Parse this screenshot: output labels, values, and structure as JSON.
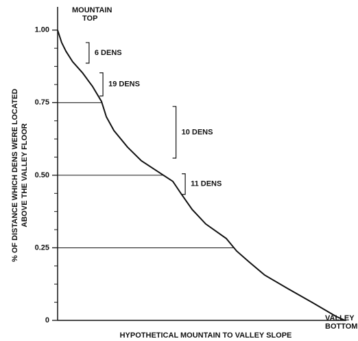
{
  "chart_data": {
    "type": "line",
    "ylabel": [
      "% OF DISTANCE WHICH DENS WERE LOCATED",
      "ABOVE THE VALLEY FLOOR"
    ],
    "xlabel": "HYPOTHETICAL MOUNTAIN TO VALLEY SLOPE",
    "top_label": [
      "MOUNTAIN",
      "TOP"
    ],
    "bottom_label": [
      "VALLEY",
      "BOTTOM"
    ],
    "xlim": [
      0,
      1
    ],
    "ylim": [
      0,
      1.08
    ],
    "yticks": [
      {
        "value": 1,
        "label": "1.00"
      },
      {
        "value": 0.75,
        "label": "0.75"
      },
      {
        "value": 0.5,
        "label": "0.50"
      },
      {
        "value": 0.25,
        "label": "0.25"
      },
      0
    ],
    "minor_yticks": [
      0.0625,
      0.125,
      0.1875,
      0.3125,
      0.375,
      0.4375,
      0.5625,
      0.625,
      0.6875,
      0.8125,
      0.875,
      0.9375
    ],
    "color": "#111111",
    "x": [
      0,
      0.014,
      0.029,
      0.052,
      0.086,
      0.121,
      0.152,
      0.169,
      0.195,
      0.242,
      0.29,
      0.359,
      0.399,
      0.428,
      0.466,
      0.513,
      0.584,
      0.62,
      0.66,
      0.717,
      0.798,
      0.881,
      0.964,
      0.995
    ],
    "values": [
      1,
      0.957,
      0.927,
      0.891,
      0.853,
      0.806,
      0.754,
      0.701,
      0.654,
      0.597,
      0.55,
      0.505,
      0.479,
      0.436,
      0.382,
      0.332,
      0.282,
      0.239,
      0.204,
      0.156,
      0.109,
      0.062,
      0.014,
      0
    ],
    "reference_lines": [
      {
        "y": 0.75,
        "x_end": 0.152
      },
      {
        "y": 0.5,
        "x_end": 0.366
      },
      {
        "y": 0.25,
        "x_end": 0.608
      }
    ],
    "annotations": [
      {
        "text": "6 DENS",
        "x": 0.109,
        "y1": 0.957,
        "y2": 0.886
      },
      {
        "text": "19 DENS",
        "x": 0.157,
        "y1": 0.853,
        "y2": 0.773
      },
      {
        "text": "10 DENS",
        "x": 0.41,
        "y1": 0.737,
        "y2": 0.559
      },
      {
        "text": "11 DENS",
        "x": 0.442,
        "y1": 0.505,
        "y2": 0.434
      }
    ]
  }
}
